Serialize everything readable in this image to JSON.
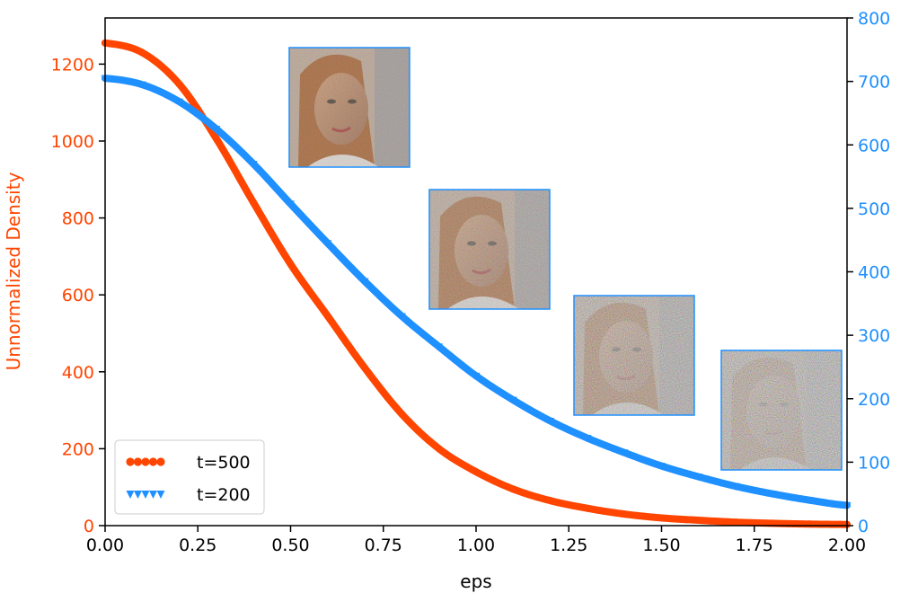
{
  "chart_data": {
    "type": "line",
    "title": "",
    "xlabel": "eps",
    "ylabel_left": "Unnormalized Density",
    "ylabel_right": "",
    "xlim": [
      0,
      2.0
    ],
    "ylim_left": [
      0,
      1320
    ],
    "ylim_right": [
      0,
      800
    ],
    "x_ticks": [
      "0.00",
      "0.25",
      "0.50",
      "0.75",
      "1.00",
      "1.25",
      "1.50",
      "1.75",
      "2.00"
    ],
    "y_left_ticks": [
      "0",
      "200",
      "400",
      "600",
      "800",
      "1000",
      "1200"
    ],
    "y_right_ticks": [
      "0",
      "100",
      "200",
      "300",
      "400",
      "500",
      "600",
      "700",
      "800"
    ],
    "grid": false,
    "legend_position": "lower-left",
    "x": [
      0.0,
      0.1,
      0.2,
      0.3,
      0.4,
      0.5,
      0.6,
      0.7,
      0.8,
      0.9,
      1.0,
      1.1,
      1.2,
      1.3,
      1.4,
      1.5,
      1.6,
      1.7,
      1.8,
      1.9,
      2.0
    ],
    "series": [
      {
        "name": "t=500",
        "axis": "left",
        "color": "#ff4500",
        "marker": "circle",
        "values": [
          1255,
          1230,
          1148,
          1006,
          840,
          680,
          545,
          410,
          290,
          200,
          140,
          95,
          65,
          45,
          30,
          20,
          14,
          9,
          6,
          4,
          3
        ]
      },
      {
        "name": "t=200",
        "axis": "right",
        "color": "#1e90ff",
        "marker": "triangle-down",
        "values": [
          705,
          695,
          668,
          625,
          570,
          507,
          445,
          385,
          330,
          282,
          236,
          198,
          165,
          138,
          115,
          94,
          77,
          62,
          50,
          40,
          32
        ]
      }
    ],
    "inset_images": [
      {
        "name": "noisy-portrait-1",
        "noise": 0.25
      },
      {
        "name": "noisy-portrait-2",
        "noise": 0.45
      },
      {
        "name": "noisy-portrait-3",
        "noise": 0.7
      },
      {
        "name": "noisy-portrait-4",
        "noise": 0.85
      }
    ]
  },
  "colors": {
    "left_axis": "#ff4500",
    "right_axis": "#1e90ff",
    "axis": "#000000"
  }
}
